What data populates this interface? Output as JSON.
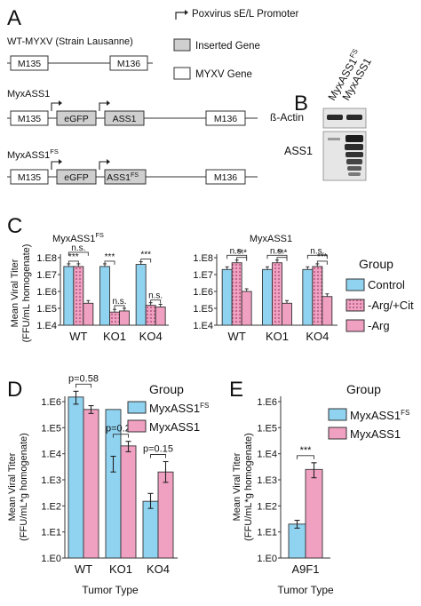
{
  "colors": {
    "cyan": "#8fd3f0",
    "pink": "#f0a0c0",
    "gray": "#cfcfcf",
    "stroke": "#333333"
  },
  "panelA": {
    "letter": "A",
    "legend": {
      "promoter": "Poxvirus sE/L Promoter",
      "inserted": "Inserted Gene",
      "myxv": "MYXV Gene"
    },
    "constructs": [
      {
        "title": "WT-MYXV (Strain Lausanne)",
        "title_sup": "",
        "genes": [
          "M135",
          "M136"
        ]
      },
      {
        "title": "MyxASS1",
        "title_sup": "",
        "genes": [
          "M135",
          "eGFP",
          "ASS1",
          "M136"
        ]
      },
      {
        "title": "MyxASS1",
        "title_sup": "FS",
        "genes": [
          "M135",
          "eGFP",
          "ASS1",
          "M136"
        ],
        "ass1_sup": "FS"
      }
    ]
  },
  "panelB": {
    "letter": "B",
    "lanes": [
      {
        "label": "MyxASS1",
        "sup": "FS"
      },
      {
        "label": "MyxASS1",
        "sup": ""
      }
    ],
    "rows": [
      "ß-Actin",
      "ASS1"
    ]
  },
  "panelC": {
    "letter": "C",
    "ylabel_line1": "Mean Viral Titer",
    "ylabel_line2": "(FFU/mL homogenate)",
    "legend_title": "Group",
    "legend_items": [
      "Control",
      "-Arg/+Cit",
      "-Arg"
    ],
    "ticks": [
      "1.E4",
      "1.E5",
      "1.E6",
      "1.E7",
      "1.E8"
    ]
  },
  "panelD": {
    "letter": "D",
    "ylabel_line1": "Mean Viral Titer",
    "ylabel_line2": "(FFU/mL*g homogenate)",
    "xlabel": "Tumor Type",
    "legend_title": "Group",
    "legend_items": [
      {
        "label": "MyxASS1",
        "sup": "FS"
      },
      {
        "label": "MyxASS1",
        "sup": ""
      }
    ],
    "ticks": [
      "1.E0",
      "1.E1",
      "1.E2",
      "1.E3",
      "1.E4",
      "1.E5",
      "1.E6"
    ],
    "pvalues": [
      "p=0.58",
      "p=0.21",
      "p=0.15"
    ]
  },
  "panelE": {
    "letter": "E",
    "ylabel_line1": "Mean Viral Titer",
    "ylabel_line2": "(FFU/mL*g homogenate)",
    "xlabel": "Tumor Type",
    "legend_title": "Group",
    "legend_items": [
      {
        "label": "MyxASS1",
        "sup": "FS"
      },
      {
        "label": "MyxASS1",
        "sup": ""
      }
    ],
    "ticks": [
      "1.E0",
      "1.E1",
      "1.E2",
      "1.E3",
      "1.E4",
      "1.E5",
      "1.E6"
    ],
    "sig": "***"
  },
  "chart_data": [
    {
      "type": "bar",
      "title": "MyxASS1",
      "title_sup": "FS",
      "categories": [
        "WT",
        "KO1",
        "KO4"
      ],
      "scale": "log10",
      "ylim": [
        10000.0,
        100000000.0
      ],
      "series": [
        {
          "name": "Control",
          "values": [
            30000000,
            30000000,
            40000000
          ]
        },
        {
          "name": "-Arg/+Cit",
          "values": [
            30000000,
            60000,
            150000
          ]
        },
        {
          "name": "-Arg",
          "values": [
            200000,
            70000,
            120000
          ]
        }
      ],
      "annotations": [
        {
          "category": "WT",
          "pairs": [
            [
              "Control",
              "-Arg"
            ],
            [
              "Control",
              "-Arg/+Cit"
            ]
          ],
          "labels": [
            "n.s.",
            "***"
          ]
        },
        {
          "category": "KO1",
          "pairs": [
            [
              "Control",
              "-Arg/+Cit"
            ],
            [
              "-Arg/+Cit",
              "-Arg"
            ]
          ],
          "labels": [
            "***",
            "n.s."
          ]
        },
        {
          "category": "KO4",
          "pairs": [
            [
              "Control",
              "-Arg/+Cit"
            ],
            [
              "-Arg/+Cit",
              "-Arg"
            ]
          ],
          "labels": [
            "***",
            "n.s."
          ]
        }
      ]
    },
    {
      "type": "bar",
      "title": "MyxASS1",
      "title_sup": "",
      "categories": [
        "WT",
        "KO1",
        "KO4"
      ],
      "scale": "log10",
      "ylim": [
        10000.0,
        100000000.0
      ],
      "series": [
        {
          "name": "Control",
          "values": [
            20000000,
            20000000,
            20000000
          ]
        },
        {
          "name": "-Arg/+Cit",
          "values": [
            50000000,
            50000000,
            30000000
          ]
        },
        {
          "name": "-Arg",
          "values": [
            1000000,
            200000,
            500000
          ]
        }
      ],
      "annotations": [
        {
          "category": "WT",
          "pairs": [
            [
              "Control",
              "-Arg"
            ],
            [
              "-Arg/+Cit",
              "-Arg"
            ]
          ],
          "labels": [
            "n.s.",
            "***"
          ]
        },
        {
          "category": "KO1",
          "pairs": [
            [
              "Control",
              "-Arg"
            ],
            [
              "-Arg/+Cit",
              "-Arg"
            ]
          ],
          "labels": [
            "n.s.",
            "***"
          ]
        },
        {
          "category": "KO4",
          "pairs": [
            [
              "Control",
              "-Arg"
            ],
            [
              "-Arg/+Cit",
              "-Arg"
            ]
          ],
          "labels": [
            "n.s.",
            "***"
          ]
        }
      ]
    },
    {
      "type": "bar",
      "categories": [
        "WT",
        "KO1",
        "KO4"
      ],
      "scale": "log10",
      "ylim": [
        1,
        1000000.0
      ],
      "xlabel": "Tumor Type",
      "series": [
        {
          "name": "MyxASS1FS",
          "values": [
            1500000,
            500000,
            150
          ]
        },
        {
          "name": "MyxASS1",
          "values": [
            500000,
            20000,
            2000
          ]
        }
      ],
      "errors": [
        [
          [
            800000,
            2500000
          ],
          [
            2000,
            8000
          ],
          [
            80,
            300
          ]
        ],
        [
          [
            350000,
            700000
          ],
          [
            12000,
            30000
          ],
          [
            800,
            5000
          ]
        ]
      ]
    },
    {
      "type": "bar",
      "categories": [
        "A9F1"
      ],
      "scale": "log10",
      "ylim": [
        1,
        1000000.0
      ],
      "xlabel": "Tumor Type",
      "series": [
        {
          "name": "MyxASS1FS",
          "values": [
            20
          ]
        },
        {
          "name": "MyxASS1",
          "values": [
            2500
          ]
        }
      ],
      "errors": [
        [
          [
            14,
            28
          ]
        ],
        [
          [
            1200,
            4500
          ]
        ]
      ]
    }
  ]
}
